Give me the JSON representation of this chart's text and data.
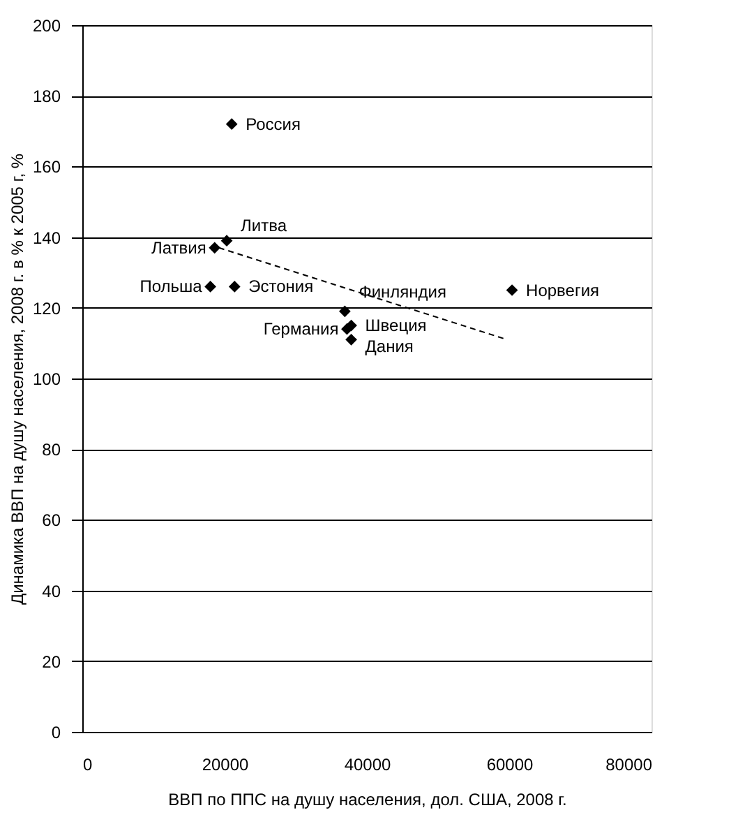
{
  "chart_data": {
    "type": "scatter",
    "xlabel": "ВВП по ППС на душу населения, дол. США, 2008 г.",
    "ylabel": "Динамика ВВП на душу населения, 2008 г. в % к 2005 г, %",
    "xlim": [
      0,
      80000
    ],
    "xticks": [
      0,
      20000,
      40000,
      60000,
      80000
    ],
    "ylim": [
      0,
      200
    ],
    "yticks": [
      0,
      20,
      40,
      60,
      80,
      100,
      120,
      140,
      160,
      180,
      200
    ],
    "grid": "y",
    "marker": "diamond",
    "series": [
      {
        "color": "#000000",
        "x": [
          21000,
          20300,
          18600,
          18000,
          21400,
          60400,
          36900,
          37800,
          37200,
          37800
        ],
        "values": [
          172,
          139,
          137,
          126,
          126,
          125,
          119,
          115,
          114,
          111
        ]
      },
      {
        "type": "line",
        "color": "#000000",
        "line_style": "dashed",
        "marker": "none",
        "x": [
          19200,
          59700
        ],
        "values": [
          137,
          111
        ]
      }
    ],
    "annotations": [
      {
        "text": "Россия",
        "x": 21000,
        "y": 172
      },
      {
        "text": "Литва",
        "x": 20300,
        "y": 139
      },
      {
        "text": "Латвия",
        "x": 18600,
        "y": 137
      },
      {
        "text": "Польша",
        "x": 18000,
        "y": 126
      },
      {
        "text": "Эстония",
        "x": 21400,
        "y": 126
      },
      {
        "text": "Норвегия",
        "x": 60400,
        "y": 125
      },
      {
        "text": "Финляндия",
        "x": 36900,
        "y": 119
      },
      {
        "text": "Швеция",
        "x": 37800,
        "y": 115
      },
      {
        "text": "Германия",
        "x": 37200,
        "y": 114
      },
      {
        "text": "Дания",
        "x": 37800,
        "y": 111
      }
    ]
  }
}
